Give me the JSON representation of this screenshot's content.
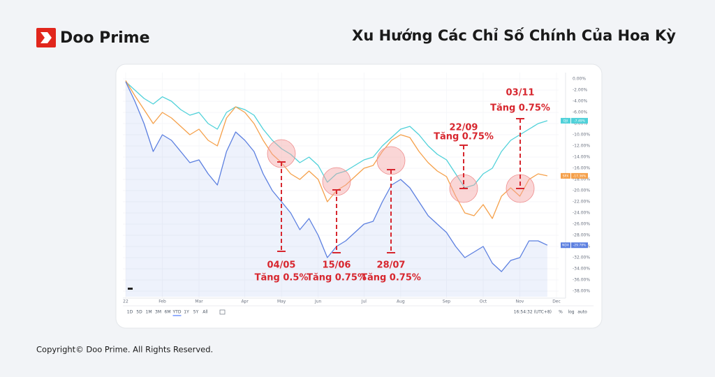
{
  "header": {
    "brand": "Doo Prime",
    "title": "Xu Hướng Các Chỉ Số Chính Của Hoa Kỳ"
  },
  "footer": {
    "copyright": "Copyright© Doo Prime. All Rights Reserved."
  },
  "chart_data": {
    "type": "line",
    "categories": [
      "22",
      null,
      null,
      null,
      "Feb",
      null,
      null,
      null,
      "Mar",
      null,
      null,
      null,
      null,
      "Apr",
      null,
      null,
      null,
      "May",
      null,
      null,
      null,
      "Jun",
      null,
      null,
      null,
      null,
      "Jul",
      null,
      null,
      null,
      "Aug",
      null,
      null,
      null,
      null,
      "Sep",
      null,
      null,
      null,
      "Oct",
      null,
      null,
      null,
      "Nov",
      null,
      null,
      null,
      "Dec"
    ],
    "series": [
      {
        "name": "DJI",
        "color": "#4fd1d9",
        "last_value_label": "-7.49%",
        "values": [
          -0.5,
          -2,
          -3.5,
          -4.5,
          -3.2,
          -4,
          -5.5,
          -6.5,
          -6,
          -8,
          -9,
          -6,
          -5,
          -5.5,
          -6.5,
          -9,
          -11,
          -12.5,
          -13.5,
          -15,
          -14,
          -15.5,
          -18.5,
          -17,
          -16.5,
          -15.5,
          -14.5,
          -14,
          -12,
          -10.5,
          -9,
          -8.5,
          -10,
          -12,
          -13.5,
          -14.5,
          -17,
          -19.5,
          -19,
          -17,
          -16,
          -13,
          -11,
          -10,
          -9,
          -8,
          -7.49,
          null
        ]
      },
      {
        "name": "SPX",
        "color": "#f5a04a",
        "last_value_label": "-17.36%",
        "values": [
          -0.3,
          -3,
          -5.5,
          -8,
          -6,
          -7,
          -8.5,
          -10,
          -9,
          -11,
          -12,
          -7,
          -5,
          -6,
          -8,
          -11,
          -13.5,
          -15,
          -17,
          -18,
          -16.5,
          -18,
          -22,
          -20,
          -19,
          -17.5,
          -16,
          -15.5,
          -13,
          -11,
          -10,
          -10.5,
          -13,
          -15,
          -16.5,
          -17.5,
          -21,
          -24,
          -24.5,
          -22.5,
          -25,
          -21,
          -19.5,
          -21,
          -18,
          -17,
          -17.36,
          null
        ]
      },
      {
        "name": "NDX",
        "color": "#5b7fe0",
        "last_value_label": "-29.78%",
        "values": [
          -0.5,
          -4,
          -8,
          -13,
          -10,
          -11,
          -13,
          -15,
          -14.5,
          -17,
          -19,
          -13,
          -9.5,
          -11,
          -13,
          -17,
          -20,
          -22,
          -24,
          -27,
          -25,
          -28,
          -32,
          -30,
          -29,
          -27.5,
          -26,
          -25.5,
          -22,
          -19,
          -18,
          -19.5,
          -22,
          -24.5,
          -26,
          -27.5,
          -30,
          -32,
          -31,
          -30,
          -33,
          -34.5,
          -32.5,
          -32,
          -29,
          -29,
          -29.78,
          null
        ]
      }
    ],
    "ylim": [
      -39,
      0.5
    ],
    "yticks": [
      {
        "value": 0,
        "label": "0.00%"
      },
      {
        "value": -2,
        "label": "-2.00%"
      },
      {
        "value": -4,
        "label": "-4.00%"
      },
      {
        "value": -6,
        "label": "-6.00%"
      },
      {
        "value": -8,
        "label": "-8.00%"
      },
      {
        "value": -10,
        "label": "-10.00%"
      },
      {
        "value": -12,
        "label": "-12.00%"
      },
      {
        "value": -14,
        "label": "-14.00%"
      },
      {
        "value": -16,
        "label": "-16.00%"
      },
      {
        "value": -18,
        "label": "-18.00%"
      },
      {
        "value": -20,
        "label": "-20.00%"
      },
      {
        "value": -22,
        "label": "-22.00%"
      },
      {
        "value": -24,
        "label": "-24.00%"
      },
      {
        "value": -26,
        "label": "-26.00%"
      },
      {
        "value": -28,
        "label": "-28.00%"
      },
      {
        "value": -30,
        "label": "-30.00%"
      },
      {
        "value": -32,
        "label": "-32.00%"
      },
      {
        "value": -34,
        "label": "-34.00%"
      },
      {
        "value": -36,
        "label": "-36.00%"
      },
      {
        "value": -38,
        "label": "-38.00%"
      }
    ],
    "grid": true,
    "annotations": [
      {
        "date": "04/05",
        "text": "Tăng 0.5%"
      },
      {
        "date": "15/06",
        "text": "Tăng 0.75%"
      },
      {
        "date": "28/07",
        "text": "Tăng 0.75%"
      },
      {
        "date": "22/09",
        "text": "Tăng 0.75%"
      },
      {
        "date": "03/11",
        "text": "Tăng 0.75%"
      }
    ],
    "toolbar": {
      "ranges": [
        "1D",
        "5D",
        "1M",
        "3M",
        "6M",
        "YTD",
        "1Y",
        "5Y",
        "All"
      ],
      "active_range": "YTD",
      "time": "16:54:32 (UTC+8)",
      "options": [
        "%",
        "log",
        "auto"
      ]
    }
  }
}
